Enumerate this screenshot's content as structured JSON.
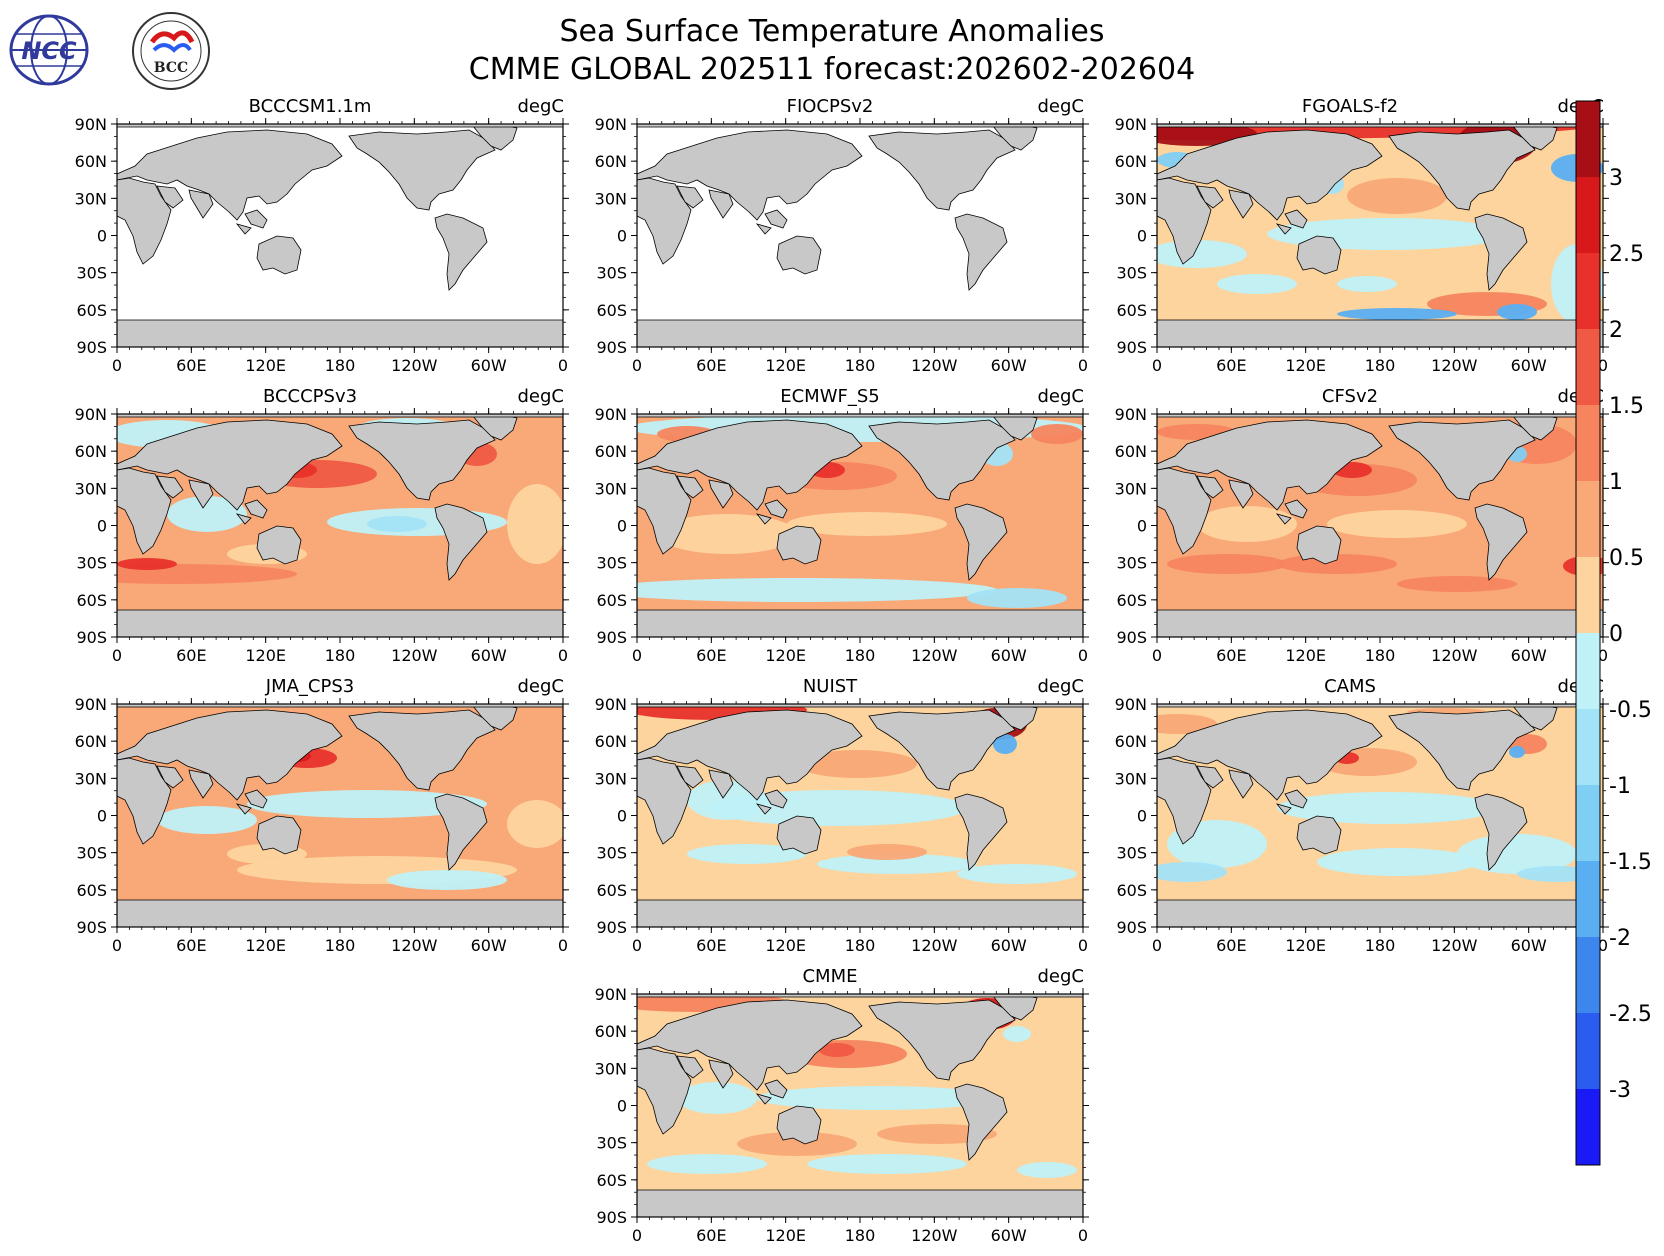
{
  "header": {
    "title_line1": "Sea Surface Temperature Anomalies",
    "title_line2": "CMME GLOBAL 202511 forecast:202602-202604",
    "logo_ncc_text": "NCC",
    "logo_bcc_text": "BCC"
  },
  "units": "degC",
  "lat_ticks": [
    "90N",
    "60N",
    "30N",
    "0",
    "30S",
    "60S",
    "90S"
  ],
  "lon_ticks": [
    "0",
    "60E",
    "120E",
    "180",
    "120W",
    "60W",
    "0"
  ],
  "panels": [
    {
      "name": "BCCCSM1.1m",
      "style": "blank"
    },
    {
      "name": "FIOCPSv2",
      "style": "blank"
    },
    {
      "name": "FGOALS-f2",
      "style": "fgoals"
    },
    {
      "name": "BCCCPSv3",
      "style": "bcccps"
    },
    {
      "name": "ECMWF_S5",
      "style": "ecmwf"
    },
    {
      "name": "CFSv2",
      "style": "cfs"
    },
    {
      "name": "JMA_CPS3",
      "style": "jma"
    },
    {
      "name": "NUIST",
      "style": "nuist"
    },
    {
      "name": "CAMS",
      "style": "cams"
    },
    {
      "name": "CMME",
      "style": "cmme"
    }
  ],
  "colorbar": {
    "labels": [
      "3",
      "2.5",
      "2",
      "1.5",
      "1",
      "0.5",
      "0",
      "-0.5",
      "-1",
      "-1.5",
      "-2",
      "-2.5",
      "-3"
    ],
    "colors": [
      "#a50f15",
      "#d7191c",
      "#e8312b",
      "#f05a45",
      "#f6855f",
      "#f9a877",
      "#fdd49e",
      "#bff1f8",
      "#a3e3f7",
      "#7fcff5",
      "#5aaff2",
      "#3d86ee",
      "#2a5cf0",
      "#1a1af7"
    ],
    "land_color": "#c8c8c8"
  }
}
